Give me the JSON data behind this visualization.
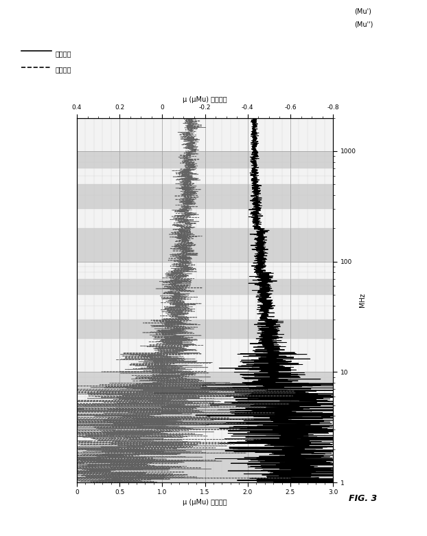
{
  "title": "FIG. 3",
  "label_freq_axis": "MHz",
  "label_left_xaxis": "μ (μMu) 磁透磁率",
  "label_right_xaxis": "μ (μMu) 磁損失率",
  "legend_solid": "磁透磁率",
  "legend_dashed": "磁損失率",
  "legend_label_mu_prime": "(Mu')",
  "legend_label_mu_dprime": "(Mu'')",
  "freq_lim": [
    1,
    2000
  ],
  "mu_prime_lim": [
    0,
    3.0
  ],
  "mu_loss_lim": [
    -0.8,
    0.4
  ],
  "mu_prime_ticks": [
    0,
    0.5,
    1.0,
    1.5,
    2.0,
    2.5,
    3.0
  ],
  "mu_loss_ticks": [
    -0.8,
    -0.6,
    -0.4,
    -0.2,
    0,
    0.2,
    0.4
  ],
  "freq_ticks": [
    1,
    10,
    100,
    1000
  ],
  "band_color_gray": "#c8c8c8",
  "band_color_white": "#f0f0f0",
  "band_color_dark": "#a8a8a8",
  "line_color_solid": "#000000",
  "line_color_dashed": "#555555",
  "grid_major_color": "#999999",
  "grid_minor_color": "#cccccc",
  "bg_color": "#ffffff"
}
